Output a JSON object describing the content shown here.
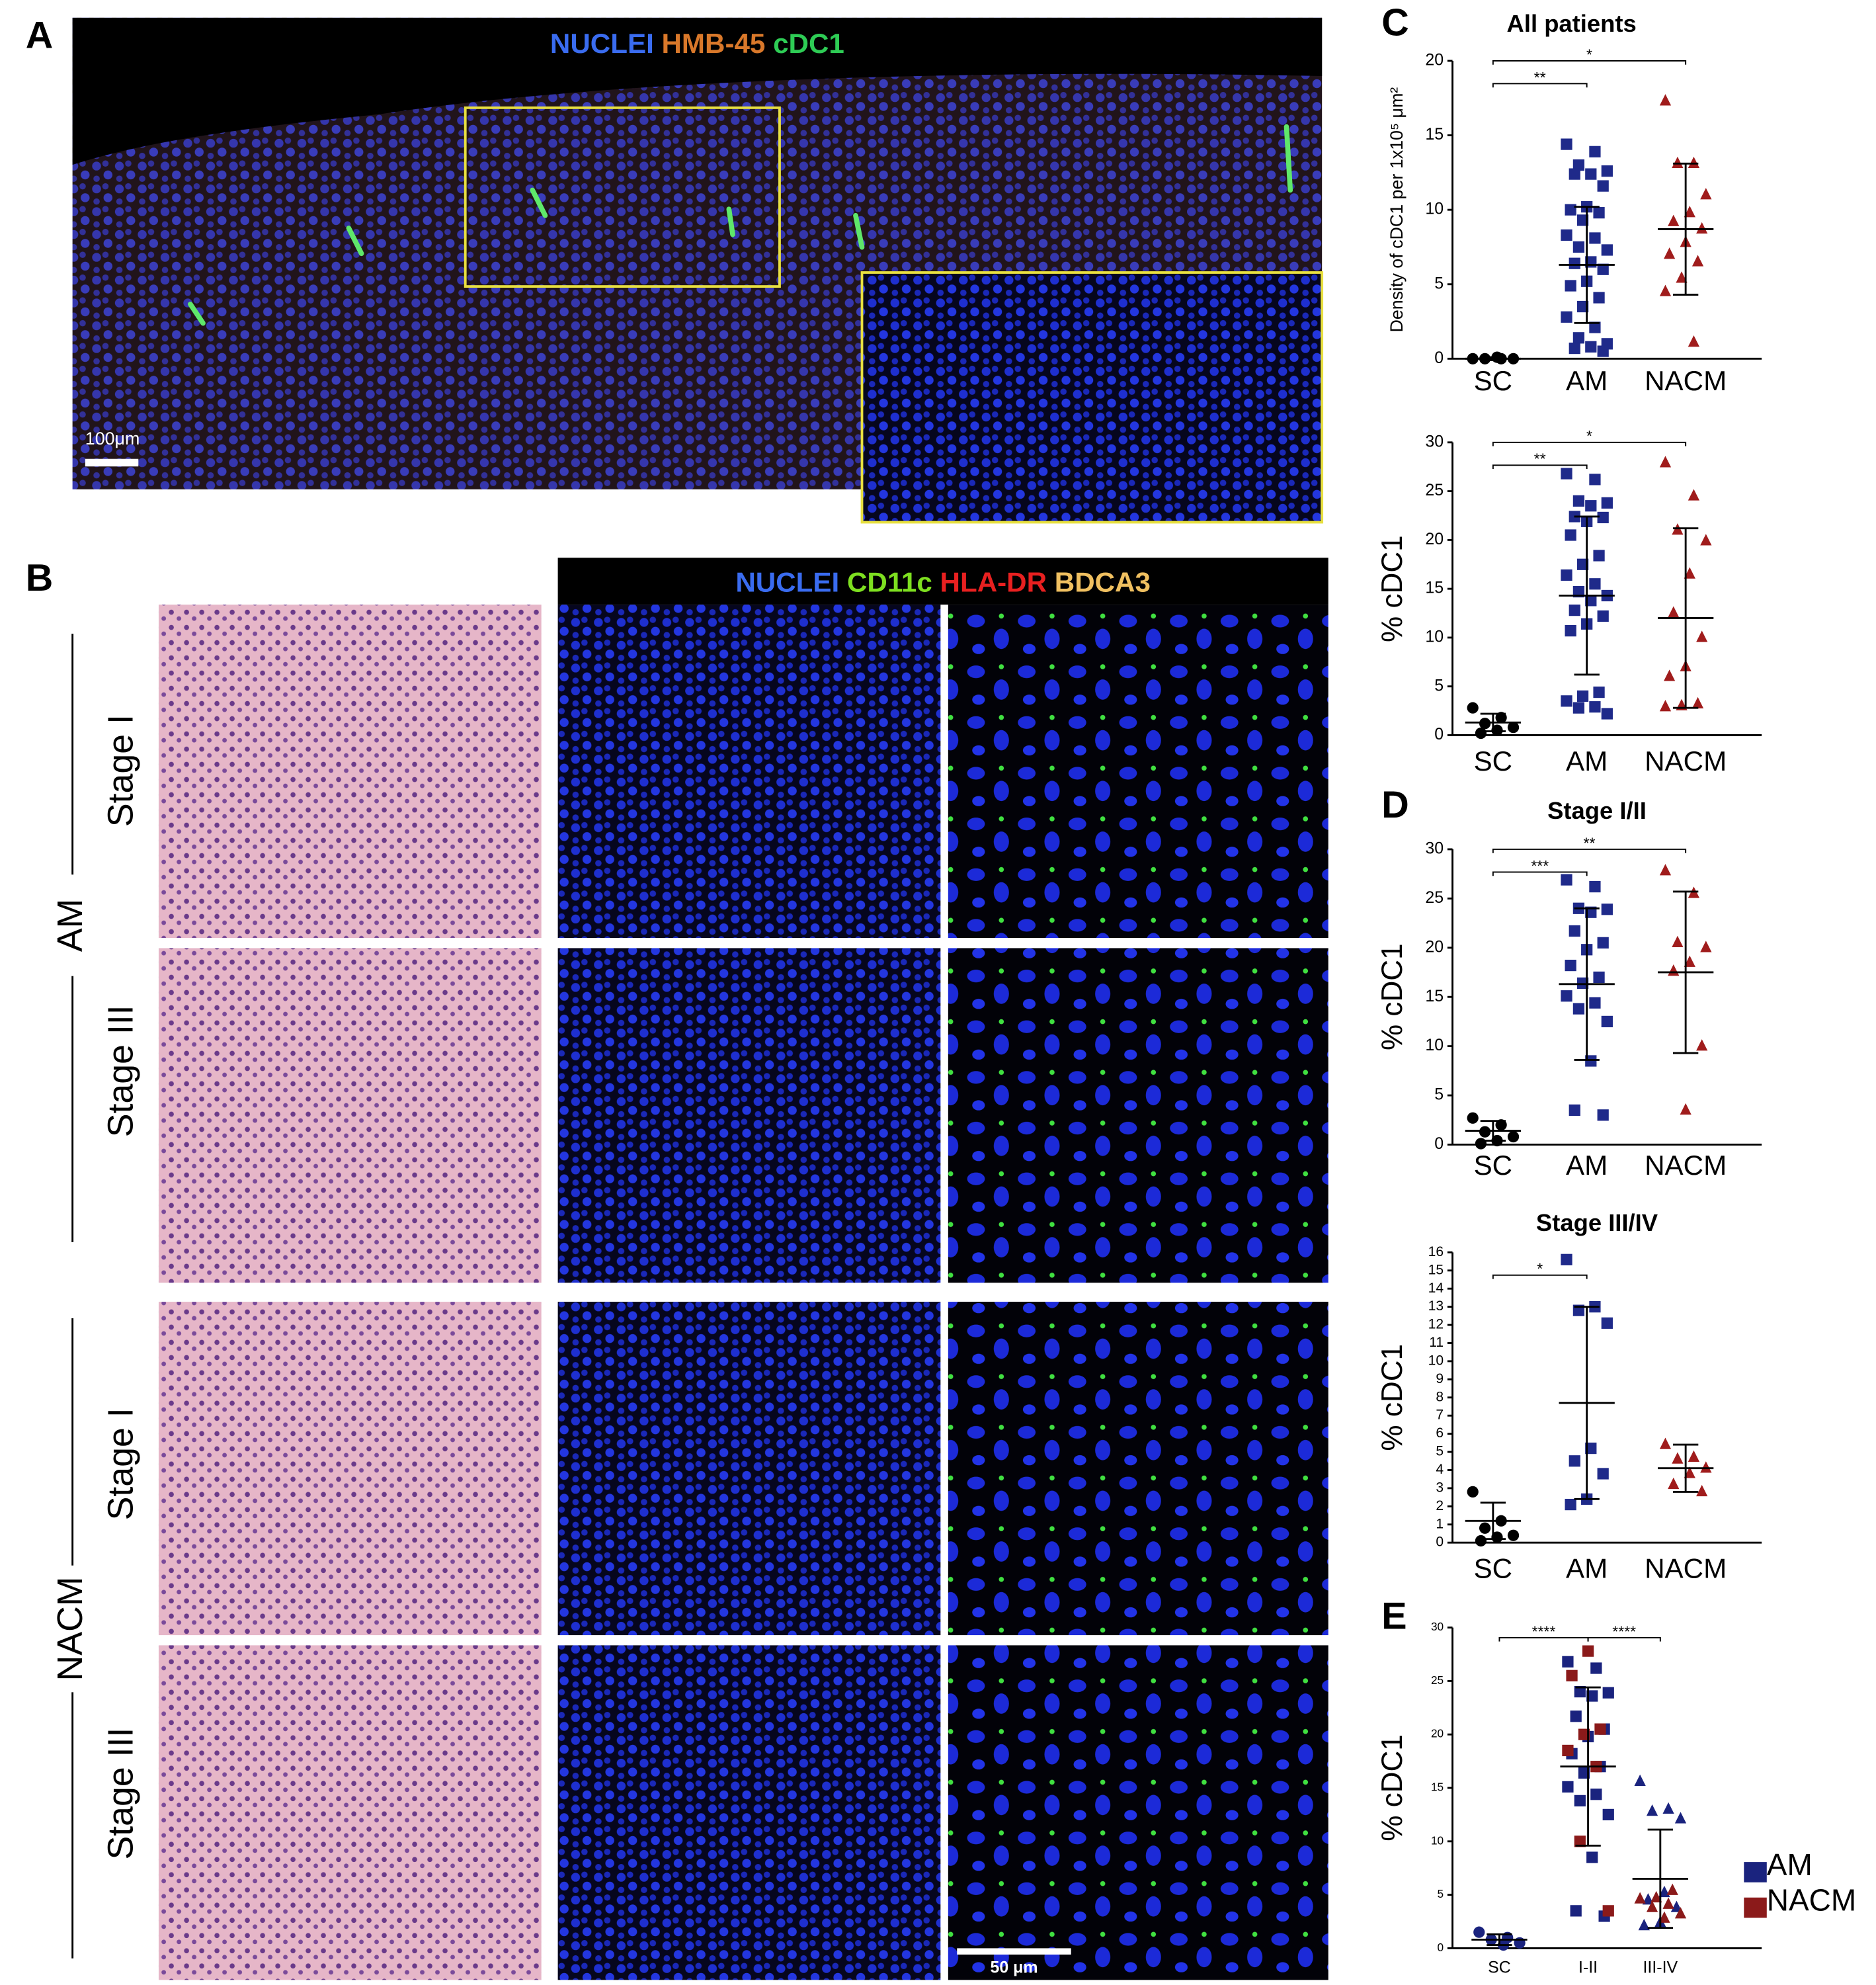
{
  "panel_labels": [
    "A",
    "B",
    "C",
    "D",
    "E"
  ],
  "panel_a": {
    "stains": [
      "NUCLEI",
      "HMB-45",
      "cDC1"
    ],
    "scale_bar": "100μm"
  },
  "panel_b": {
    "stains": [
      "NUCLEI",
      "CD11c",
      "HLA-DR",
      "BDCA3"
    ],
    "groups": [
      "AM",
      "NACM"
    ],
    "rows": [
      "Stage I",
      "Stage III",
      "Stage I",
      "Stage III"
    ],
    "scale_bar": "50 μm"
  },
  "chart_data": [
    {
      "type": "dotplot",
      "title": "All patients",
      "ylabel": "Density of cDC1 per 1x10⁵ μm²",
      "categories": [
        "SC",
        "AM",
        "NACM"
      ],
      "markers": [
        "circle",
        "square",
        "triangle"
      ],
      "colors": [
        "#000000",
        "#1f2a8a",
        "#a01c1c"
      ],
      "points": [
        [
          0,
          0,
          0,
          0,
          0.1
        ],
        [
          14.4,
          13.9,
          13,
          12.6,
          12.4,
          12.4,
          11.6,
          10.2,
          10,
          9.8,
          9.3,
          8.3,
          8.1,
          7.5,
          7.3,
          6.5,
          6.4,
          6,
          5.2,
          4.9,
          4.1,
          3.5,
          2.8,
          2.1,
          1.4,
          1,
          0.8,
          0.7,
          0.5
        ],
        [
          17.3,
          13.1,
          13.1,
          11,
          9.8,
          9.2,
          8.7,
          7.8,
          7,
          6.5,
          5.4,
          4.5,
          1.1
        ]
      ],
      "mean": [
        0,
        6.3,
        8.7
      ],
      "sd": [
        0.1,
        3.9,
        4.4
      ],
      "significance": [
        {
          "from": 0,
          "to": 1,
          "label": "**"
        },
        {
          "from": 0,
          "to": 2,
          "label": "*"
        }
      ],
      "ylim": [
        0,
        20
      ],
      "yticks": [
        0,
        5,
        10,
        15,
        20
      ]
    },
    {
      "type": "dotplot",
      "ylabel": "% cDC1",
      "categories": [
        "SC",
        "AM",
        "NACM"
      ],
      "markers": [
        "circle",
        "square",
        "triangle"
      ],
      "colors": [
        "#000000",
        "#1f2a8a",
        "#a01c1c"
      ],
      "points": [
        [
          2.8,
          1.8,
          1.2,
          0.8,
          0.5,
          0.2
        ],
        [
          26.8,
          26.2,
          24,
          23.8,
          23.5,
          22.4,
          22.3,
          21.9,
          20.5,
          18.4,
          17.5,
          16.4,
          15.5,
          14.7,
          14.3,
          13.8,
          12.8,
          12.2,
          11.4,
          10.7,
          4.4,
          4,
          3.5,
          2.9,
          2.8,
          2.2
        ],
        [
          27.9,
          24.5,
          21,
          19.9,
          16.5,
          12.5,
          10,
          7,
          6,
          3.2,
          3,
          2.9
        ]
      ],
      "mean": [
        1.3,
        14.3,
        12
      ],
      "sd": [
        0.9,
        8.1,
        9.2
      ],
      "significance": [
        {
          "from": 0,
          "to": 1,
          "label": "**"
        },
        {
          "from": 0,
          "to": 2,
          "label": "*"
        }
      ],
      "ylim": [
        0,
        30
      ],
      "yticks": [
        0,
        5,
        10,
        15,
        20,
        25,
        30
      ]
    },
    {
      "type": "dotplot",
      "title": "Stage I/II",
      "ylabel": "% cDC1",
      "categories": [
        "SC",
        "AM",
        "NACM"
      ],
      "markers": [
        "circle",
        "square",
        "triangle"
      ],
      "colors": [
        "#000000",
        "#1f2a8a",
        "#a01c1c"
      ],
      "points": [
        [
          2.7,
          2,
          1.3,
          0.8,
          0.4,
          0.1
        ],
        [
          26.9,
          26.2,
          24,
          23.9,
          23.6,
          21.7,
          20.5,
          19.8,
          18.2,
          17,
          16.4,
          15.1,
          14.4,
          13.8,
          12.5,
          8.5,
          3.5,
          3
        ],
        [
          27.8,
          25.5,
          20.5,
          20,
          18.5,
          17.6,
          10,
          3.5
        ]
      ],
      "mean": [
        1.4,
        16.3,
        17.5
      ],
      "sd": [
        1,
        7.7,
        8.2
      ],
      "significance": [
        {
          "from": 0,
          "to": 1,
          "label": "***"
        },
        {
          "from": 0,
          "to": 2,
          "label": "**"
        }
      ],
      "ylim": [
        0,
        30
      ],
      "yticks": [
        0,
        5,
        10,
        15,
        20,
        25,
        30
      ]
    },
    {
      "type": "dotplot",
      "title": "Stage III/IV",
      "ylabel": "% cDC1",
      "categories": [
        "SC",
        "AM",
        "NACM"
      ],
      "markers": [
        "circle",
        "square",
        "triangle"
      ],
      "colors": [
        "#000000",
        "#1f2a8a",
        "#a01c1c"
      ],
      "points": [
        [
          2.8,
          1.2,
          0.8,
          0.4,
          0.3,
          0.1
        ],
        [
          15.6,
          13,
          12.8,
          12.1,
          5.2,
          4.5,
          3.8,
          2.4,
          2.1
        ],
        [
          5.4,
          4.7,
          4.6,
          4.1,
          3.8,
          3.2,
          2.8
        ]
      ],
      "mean": [
        1.2,
        7.7,
        4.1
      ],
      "sd": [
        1,
        5.3,
        1.3
      ],
      "significance": [
        {
          "from": 0,
          "to": 1,
          "label": "*"
        }
      ],
      "ylim": [
        0,
        16
      ],
      "yticks": [
        0,
        1,
        2,
        3,
        4,
        5,
        6,
        7,
        8,
        9,
        10,
        11,
        12,
        13,
        14,
        15,
        16
      ]
    },
    {
      "type": "dotplot",
      "ylabel": "% cDC1",
      "categories": [
        "SC",
        "I-II",
        "III-IV"
      ],
      "markers": [
        "circle",
        "square",
        "triangle"
      ],
      "series": [
        {
          "name": "AM",
          "color": "#1a237e",
          "values": [
            [
              1.5,
              1,
              0.8,
              0.5,
              0.3
            ],
            [
              26.8,
              26.2,
              24,
              23.9,
              23.6,
              21.7,
              20.5,
              19.8,
              18.2,
              17,
              16.4,
              15.1,
              14.4,
              13.8,
              12.5,
              8.5,
              3.5,
              3
            ],
            [
              15.6,
              13,
              12.8,
              12.1,
              5.2,
              4.5,
              3.8,
              2.4,
              2.1
            ]
          ]
        },
        {
          "name": "NACM",
          "color": "#8b1a1a",
          "values": [
            [],
            [
              27.8,
              25.5,
              20.5,
              20,
              18.5,
              17,
              10,
              3.5
            ],
            [
              5.4,
              4.7,
              4.6,
              4.1,
              3.8,
              3.2,
              2.8
            ]
          ]
        }
      ],
      "mean": [
        0.8,
        17,
        6.5
      ],
      "sd": [
        0.5,
        7.4,
        4.6
      ],
      "significance": [
        {
          "from": 0,
          "to": 1,
          "label": "****"
        },
        {
          "from": 1,
          "to": 2,
          "label": "****"
        }
      ],
      "ylim": [
        0,
        30
      ],
      "yticks": [
        0,
        5,
        10,
        15,
        20,
        25,
        30
      ],
      "legend": true
    }
  ]
}
